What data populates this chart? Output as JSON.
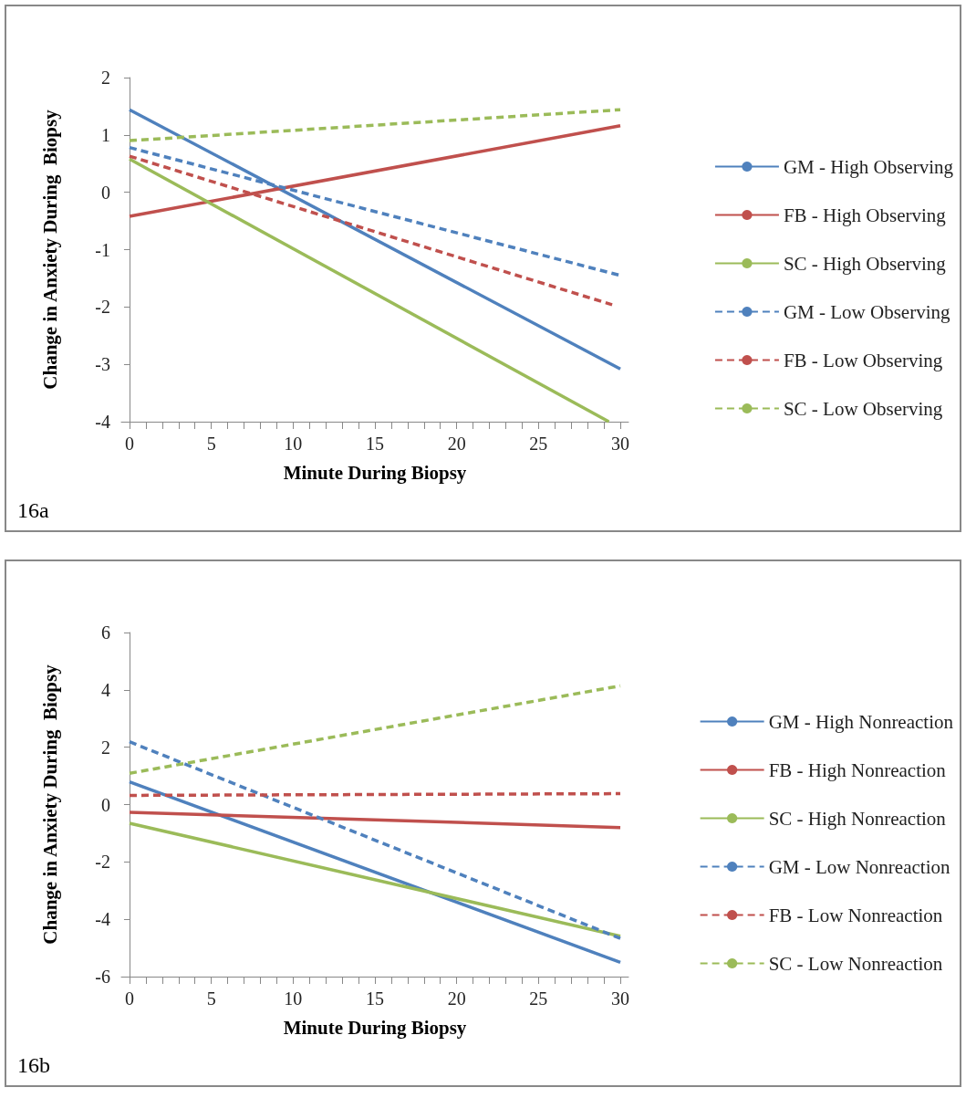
{
  "chart_data": [
    {
      "type": "line",
      "xlabel": "Minute During Biopsy",
      "ylabel": "Change in Anxiety During  Biopsy",
      "annotations": [
        "16a"
      ],
      "xlim": [
        -0.5,
        30.5
      ],
      "xticks": [
        0,
        5,
        10,
        15,
        20,
        25,
        30
      ],
      "ylim": [
        -4,
        2
      ],
      "yticks": [
        -4,
        -3,
        -2,
        -1,
        0,
        1,
        2
      ],
      "legend": "right",
      "grid": false,
      "series": [
        {
          "name": "GM - High Observing",
          "color": "#4f81bd",
          "line_style": "solid",
          "x": [
            0,
            30
          ],
          "values": [
            1.44,
            -3.08
          ]
        },
        {
          "name": "FB - High Observing",
          "color": "#c0504d",
          "line_style": "solid",
          "x": [
            0,
            30
          ],
          "values": [
            -0.42,
            1.16
          ]
        },
        {
          "name": "SC - High Observing",
          "color": "#9bbb59",
          "line_style": "solid",
          "x": [
            0,
            29.3
          ],
          "values": [
            0.58,
            -4
          ]
        },
        {
          "name": "GM - Low Observing",
          "color": "#4f81bd",
          "line_style": "dashed",
          "x": [
            0,
            30
          ],
          "values": [
            0.78,
            -1.45
          ]
        },
        {
          "name": "FB - Low Observing",
          "color": "#c0504d",
          "line_style": "dashed",
          "x": [
            0,
            29.5
          ],
          "values": [
            0.63,
            -1.96
          ]
        },
        {
          "name": "SC - Low Observing",
          "color": "#9bbb59",
          "line_style": "dashed",
          "x": [
            0,
            30
          ],
          "values": [
            0.9,
            1.44
          ]
        }
      ]
    },
    {
      "type": "line",
      "xlabel": "Minute During Biopsy",
      "ylabel": "Change in Anxiety During  Biopsy",
      "annotations": [
        "16b"
      ],
      "xlim": [
        -0.5,
        30.5
      ],
      "xticks": [
        0,
        5,
        10,
        15,
        20,
        25,
        30
      ],
      "ylim": [
        -6,
        6
      ],
      "yticks": [
        -6,
        -4,
        -2,
        0,
        2,
        4,
        6
      ],
      "legend": "right",
      "grid": false,
      "series": [
        {
          "name": "GM - High Nonreaction",
          "color": "#4f81bd",
          "line_style": "solid",
          "x": [
            0,
            30
          ],
          "values": [
            0.79,
            -5.5
          ]
        },
        {
          "name": "FB - High Nonreaction",
          "color": "#c0504d",
          "line_style": "solid",
          "x": [
            0,
            30
          ],
          "values": [
            -0.27,
            -0.8
          ]
        },
        {
          "name": "SC - High Nonreaction",
          "color": "#9bbb59",
          "line_style": "solid",
          "x": [
            0,
            30
          ],
          "values": [
            -0.65,
            -4.59
          ]
        },
        {
          "name": "GM - Low Nonreaction",
          "color": "#4f81bd",
          "line_style": "dashed",
          "x": [
            0,
            30
          ],
          "values": [
            2.19,
            -4.67
          ]
        },
        {
          "name": "FB - Low Nonreaction",
          "color": "#c0504d",
          "line_style": "dashed",
          "x": [
            0,
            30
          ],
          "values": [
            0.32,
            0.38
          ]
        },
        {
          "name": "SC - Low Nonreaction",
          "color": "#9bbb59",
          "line_style": "dashed",
          "x": [
            0,
            30
          ],
          "values": [
            1.09,
            4.14
          ]
        }
      ]
    }
  ]
}
